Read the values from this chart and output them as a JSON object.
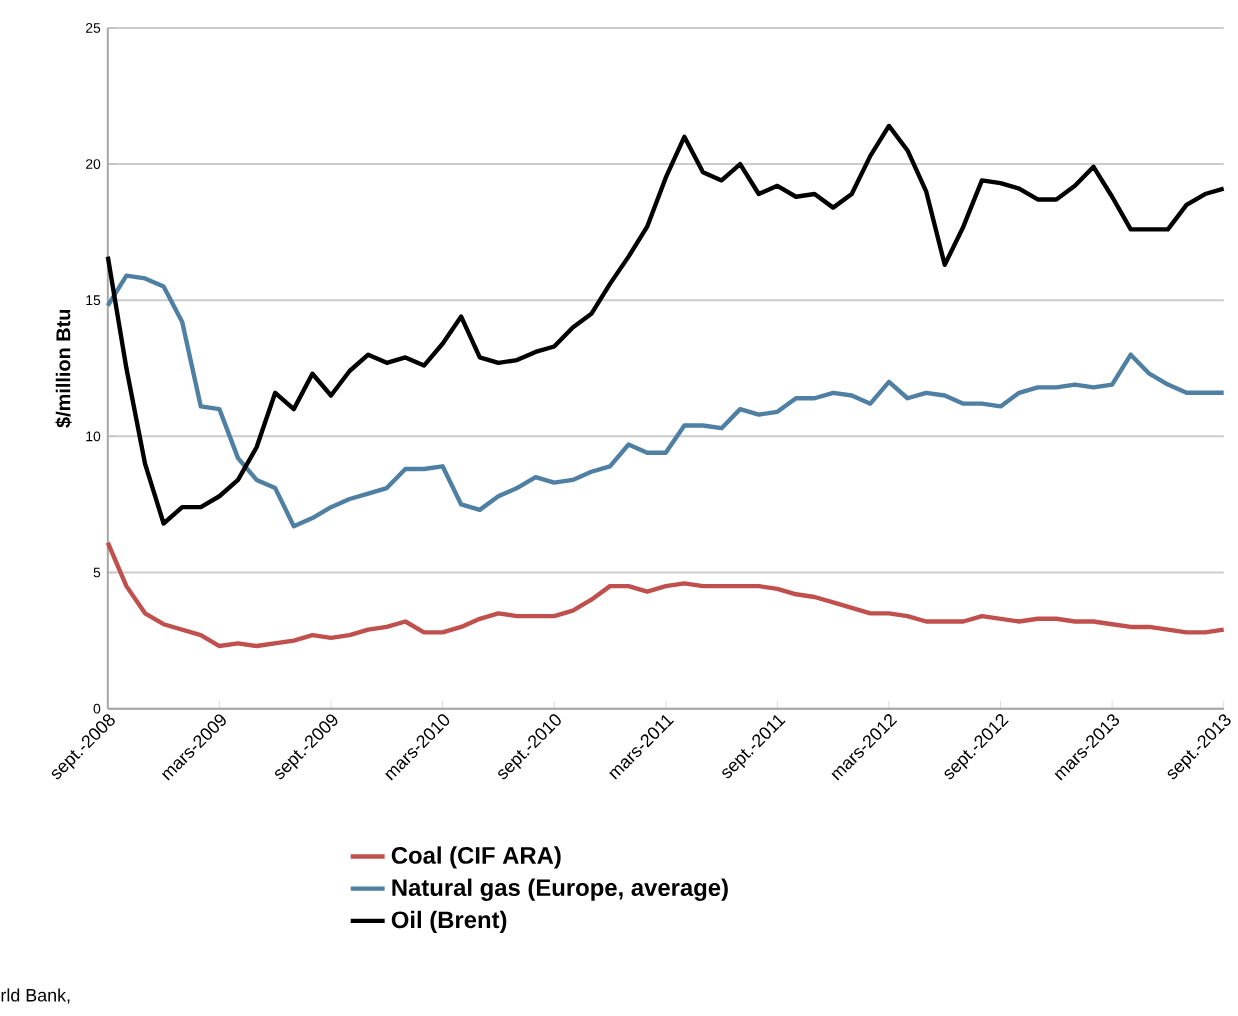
{
  "chart_data": {
    "type": "line",
    "categories": [
      "sept.-2008",
      null,
      null,
      null,
      null,
      null,
      "mars-2009",
      null,
      null,
      null,
      null,
      null,
      "sept.-2009",
      null,
      null,
      null,
      null,
      null,
      "mars-2010",
      null,
      null,
      null,
      null,
      null,
      "sept.-2010",
      null,
      null,
      null,
      null,
      null,
      "mars-2011",
      null,
      null,
      null,
      null,
      null,
      "sept.-2011",
      null,
      null,
      null,
      null,
      null,
      "mars-2012",
      null,
      null,
      null,
      null,
      null,
      "sept.-2012",
      null,
      null,
      null,
      null,
      null,
      "mars-2013",
      null,
      null,
      null,
      null,
      null,
      "sept.-2013"
    ],
    "ylabel": "$/million Btu",
    "ylim": [
      0,
      25
    ],
    "yticks": [
      0,
      5,
      10,
      15,
      20,
      25
    ],
    "grid": "y",
    "legend": "bottom",
    "line_style": "solid",
    "marker": "none",
    "annotations": [
      "rld Bank,"
    ],
    "series": [
      {
        "name": "Coal (CIF ARA)",
        "color": "#c0504d",
        "values": [
          6.1,
          4.5,
          3.5,
          3.1,
          2.9,
          2.7,
          2.3,
          2.4,
          2.3,
          2.4,
          2.5,
          2.7,
          2.6,
          2.7,
          2.9,
          3.0,
          3.2,
          2.8,
          2.8,
          3.0,
          3.3,
          3.5,
          3.4,
          3.4,
          3.4,
          3.6,
          4.0,
          4.5,
          4.5,
          4.3,
          4.5,
          4.6,
          4.5,
          4.5,
          4.5,
          4.5,
          4.4,
          4.2,
          4.1,
          3.9,
          3.7,
          3.5,
          3.5,
          3.4,
          3.2,
          3.2,
          3.2,
          3.4,
          3.3,
          3.2,
          3.3,
          3.3,
          3.2,
          3.2,
          3.1,
          3.0,
          3.0,
          2.9,
          2.8,
          2.8,
          2.9
        ]
      },
      {
        "name": "Natural gas (Europe, average)",
        "color": "#4f7fa3",
        "values": [
          14.8,
          15.9,
          15.8,
          15.5,
          14.2,
          11.1,
          11.0,
          9.2,
          8.4,
          8.1,
          6.7,
          7.0,
          7.4,
          7.7,
          7.9,
          8.1,
          8.8,
          8.8,
          8.9,
          7.5,
          7.3,
          7.8,
          8.1,
          8.5,
          8.3,
          8.4,
          8.7,
          8.9,
          9.7,
          9.4,
          9.4,
          10.4,
          10.4,
          10.3,
          11.0,
          10.8,
          10.9,
          11.4,
          11.4,
          11.6,
          11.5,
          11.2,
          12.0,
          11.4,
          11.6,
          11.5,
          11.2,
          11.2,
          11.1,
          11.6,
          11.8,
          11.8,
          11.9,
          11.8,
          11.9,
          13.0,
          12.3,
          11.9,
          11.6,
          11.6,
          11.6
        ]
      },
      {
        "name": "Oil (Brent)",
        "color": "#000000",
        "values": [
          16.6,
          12.5,
          9.0,
          6.8,
          7.4,
          7.4,
          7.8,
          8.4,
          9.6,
          11.6,
          11.0,
          12.3,
          11.5,
          12.4,
          13.0,
          12.7,
          12.9,
          12.6,
          13.4,
          14.4,
          12.9,
          12.7,
          12.8,
          13.1,
          13.3,
          14.0,
          14.5,
          15.6,
          16.6,
          17.7,
          19.5,
          21.0,
          19.7,
          19.4,
          20.0,
          18.9,
          19.2,
          18.8,
          18.9,
          18.4,
          18.9,
          20.3,
          21.4,
          20.5,
          19.0,
          16.3,
          17.7,
          19.4,
          19.3,
          19.1,
          18.7,
          18.7,
          19.2,
          19.9,
          18.8,
          17.6,
          17.6,
          17.6,
          18.5,
          18.9,
          19.1
        ]
      }
    ]
  }
}
